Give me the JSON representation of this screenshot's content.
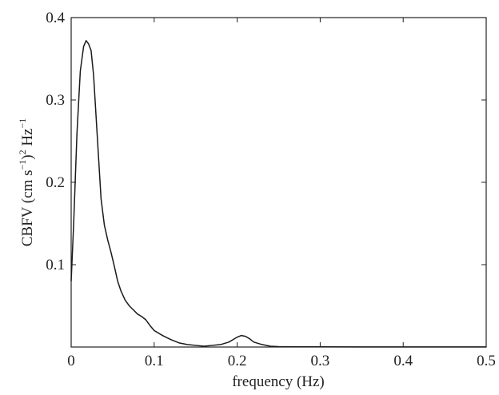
{
  "chart_data": {
    "type": "line",
    "title": "",
    "xlabel": "frequency (Hz)",
    "ylabel": {
      "base": "CBFV (cm s",
      "sup1": "−1",
      "mid": ")",
      "sup2": "2",
      "unit": " Hz",
      "sup3": "−1"
    },
    "xlim": [
      0,
      0.5
    ],
    "ylim": [
      0,
      0.4
    ],
    "x_ticks": [
      {
        "value": 0,
        "label": "0"
      },
      {
        "value": 0.1,
        "label": "0.1"
      },
      {
        "value": 0.2,
        "label": "0.2"
      },
      {
        "value": 0.3,
        "label": "0.3"
      },
      {
        "value": 0.4,
        "label": "0.4"
      },
      {
        "value": 0.5,
        "label": "0.5"
      }
    ],
    "y_ticks": [
      {
        "value": 0.1,
        "label": "0.1"
      },
      {
        "value": 0.2,
        "label": "0.2"
      },
      {
        "value": 0.3,
        "label": "0.3"
      },
      {
        "value": 0.4,
        "label": "0.4"
      }
    ],
    "grid": false,
    "legend": "none",
    "series": [
      {
        "color": "#1a1a1a",
        "x": [
          0,
          0.003,
          0.007,
          0.011,
          0.015,
          0.018,
          0.021,
          0.024,
          0.027,
          0.03,
          0.033,
          0.036,
          0.04,
          0.044,
          0.048,
          0.052,
          0.056,
          0.06,
          0.065,
          0.07,
          0.075,
          0.08,
          0.085,
          0.09,
          0.095,
          0.1,
          0.11,
          0.12,
          0.13,
          0.14,
          0.15,
          0.16,
          0.17,
          0.18,
          0.19,
          0.195,
          0.2,
          0.205,
          0.21,
          0.215,
          0.22,
          0.23,
          0.24,
          0.25,
          0.27,
          0.3,
          0.35,
          0.4,
          0.45,
          0.5
        ],
        "y": [
          0.08,
          0.15,
          0.26,
          0.335,
          0.365,
          0.372,
          0.368,
          0.36,
          0.33,
          0.28,
          0.23,
          0.18,
          0.148,
          0.13,
          0.115,
          0.098,
          0.08,
          0.068,
          0.057,
          0.05,
          0.045,
          0.04,
          0.037,
          0.033,
          0.026,
          0.02,
          0.014,
          0.009,
          0.005,
          0.003,
          0.002,
          0.001,
          0.002,
          0.003,
          0.006,
          0.009,
          0.012,
          0.014,
          0.013,
          0.01,
          0.006,
          0.003,
          0.001,
          0.0005,
          0.0003,
          0.0002,
          0.0001,
          0.0001,
          0.0001,
          0.0001
        ]
      }
    ]
  }
}
